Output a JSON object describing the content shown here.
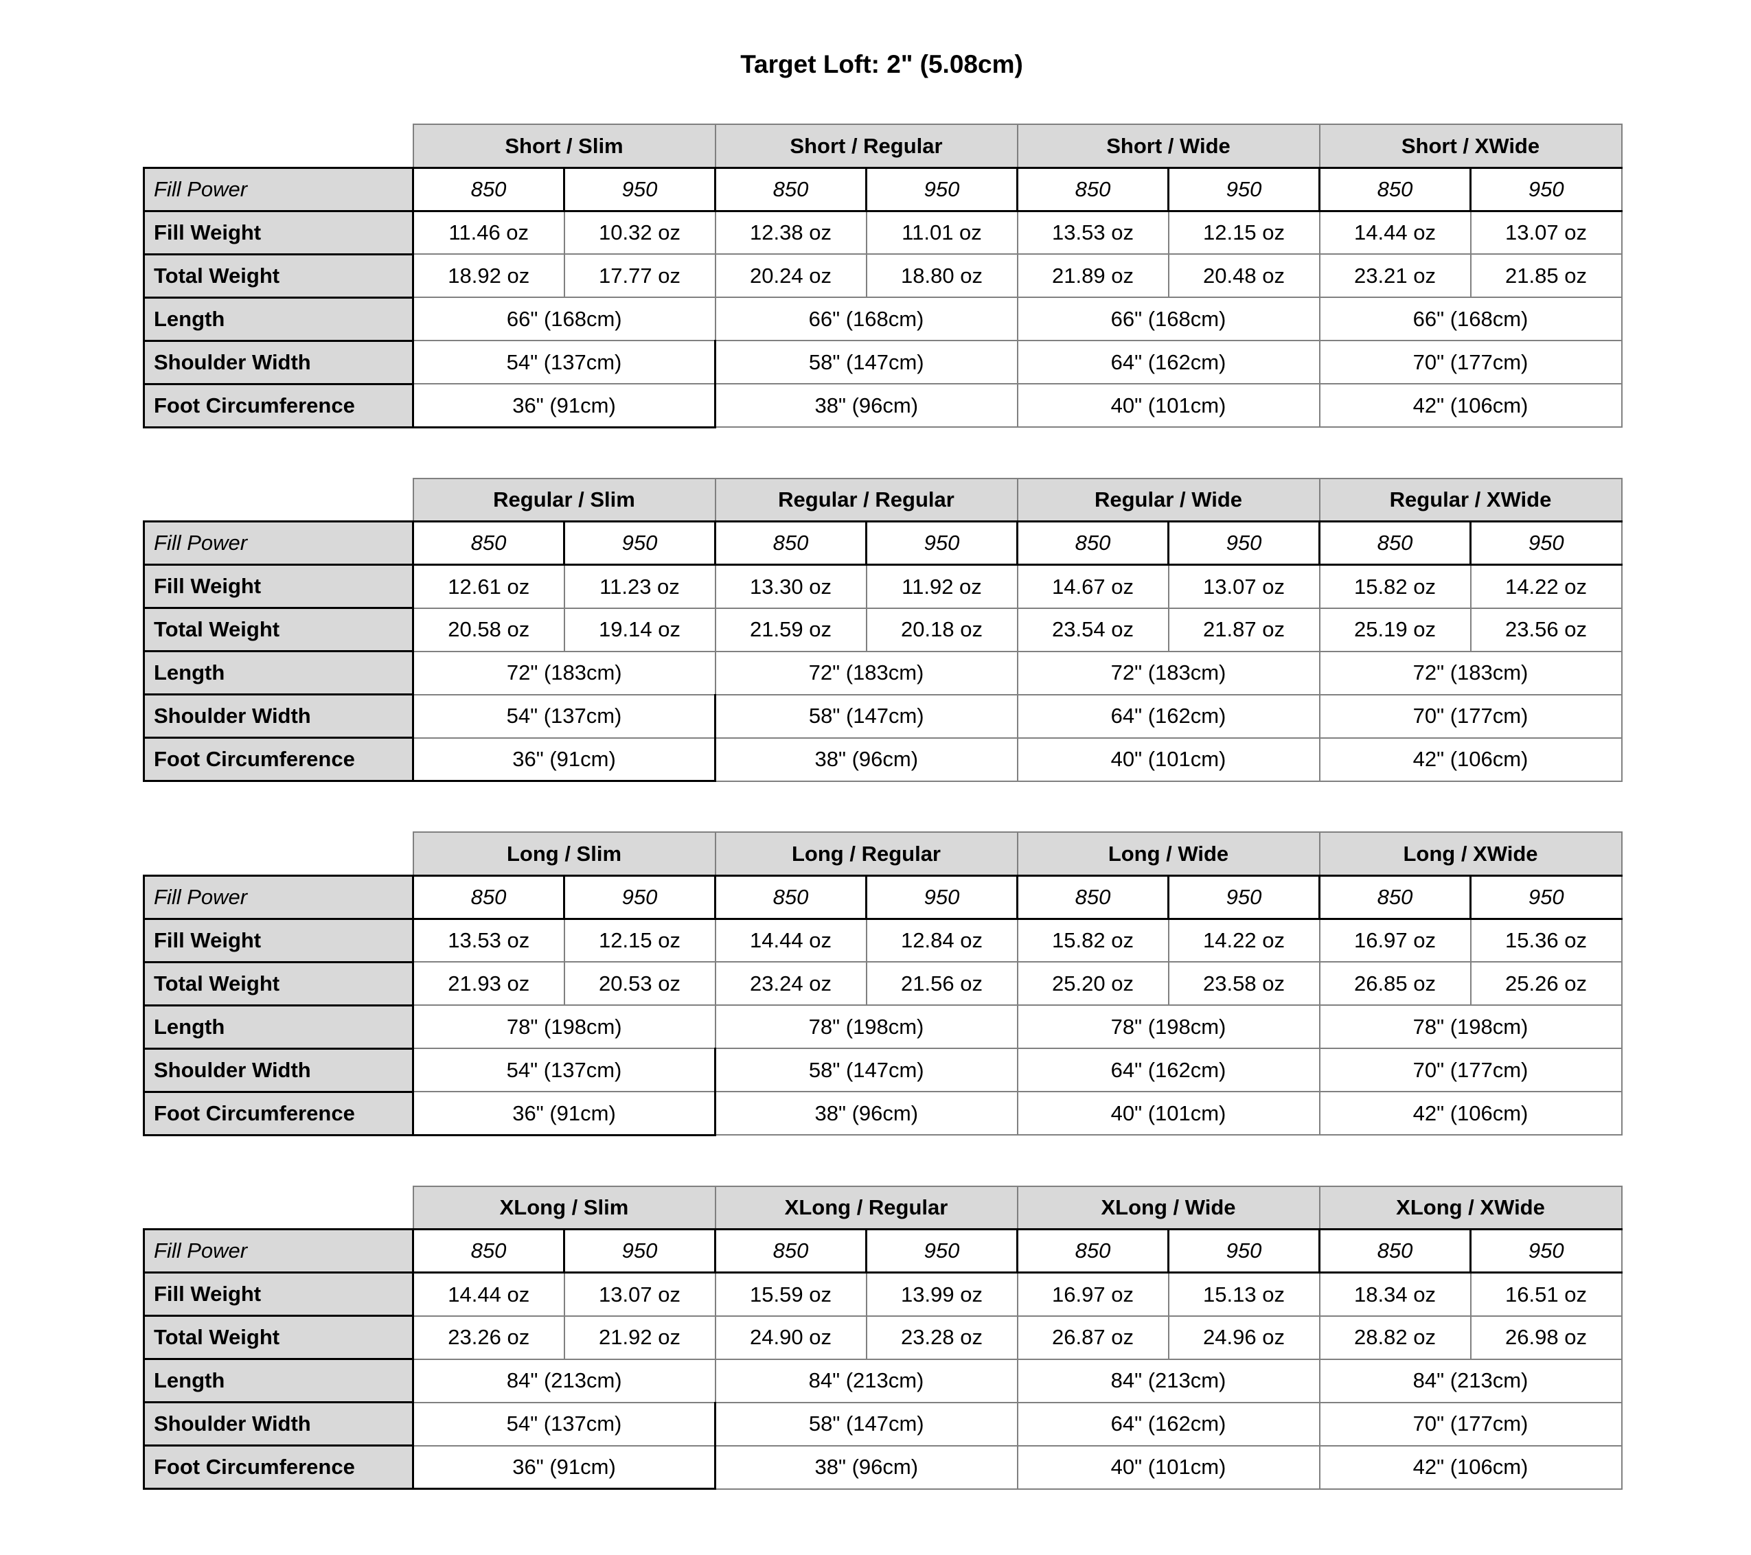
{
  "title": "Target Loft: 2\" (5.08cm)",
  "row_labels": {
    "fill_power": "Fill Power",
    "fill_weight": "Fill Weight",
    "total_weight": "Total Weight",
    "length": "Length",
    "shoulder_width": "Shoulder Width",
    "foot_circumference": "Foot Circumference"
  },
  "fill_power_values": [
    "850",
    "950"
  ],
  "tables": [
    {
      "name": "short",
      "groups": [
        {
          "header": "Short / Slim",
          "fill_weight": [
            "11.46 oz",
            "10.32 oz"
          ],
          "total_weight": [
            "18.92 oz",
            "17.77 oz"
          ],
          "length": "66\" (168cm)",
          "shoulder_width": "54\" (137cm)",
          "foot_circumference": "36\" (91cm)"
        },
        {
          "header": "Short / Regular",
          "fill_weight": [
            "12.38 oz",
            "11.01 oz"
          ],
          "total_weight": [
            "20.24 oz",
            "18.80 oz"
          ],
          "length": "66\" (168cm)",
          "shoulder_width": "58\" (147cm)",
          "foot_circumference": "38\" (96cm)"
        },
        {
          "header": "Short / Wide",
          "fill_weight": [
            "13.53 oz",
            "12.15 oz"
          ],
          "total_weight": [
            "21.89 oz",
            "20.48 oz"
          ],
          "length": "66\" (168cm)",
          "shoulder_width": "64\" (162cm)",
          "foot_circumference": "40\" (101cm)"
        },
        {
          "header": "Short / XWide",
          "fill_weight": [
            "14.44 oz",
            "13.07 oz"
          ],
          "total_weight": [
            "23.21 oz",
            "21.85 oz"
          ],
          "length": "66\" (168cm)",
          "shoulder_width": "70\" (177cm)",
          "foot_circumference": "42\" (106cm)"
        }
      ]
    },
    {
      "name": "regular",
      "groups": [
        {
          "header": "Regular / Slim",
          "fill_weight": [
            "12.61 oz",
            "11.23 oz"
          ],
          "total_weight": [
            "20.58 oz",
            "19.14 oz"
          ],
          "length": "72\" (183cm)",
          "shoulder_width": "54\" (137cm)",
          "foot_circumference": "36\" (91cm)"
        },
        {
          "header": "Regular / Regular",
          "fill_weight": [
            "13.30 oz",
            "11.92 oz"
          ],
          "total_weight": [
            "21.59 oz",
            "20.18 oz"
          ],
          "length": "72\" (183cm)",
          "shoulder_width": "58\" (147cm)",
          "foot_circumference": "38\" (96cm)"
        },
        {
          "header": "Regular / Wide",
          "fill_weight": [
            "14.67 oz",
            "13.07 oz"
          ],
          "total_weight": [
            "23.54 oz",
            "21.87 oz"
          ],
          "length": "72\" (183cm)",
          "shoulder_width": "64\" (162cm)",
          "foot_circumference": "40\" (101cm)"
        },
        {
          "header": "Regular / XWide",
          "fill_weight": [
            "15.82 oz",
            "14.22 oz"
          ],
          "total_weight": [
            "25.19 oz",
            "23.56 oz"
          ],
          "length": "72\" (183cm)",
          "shoulder_width": "70\" (177cm)",
          "foot_circumference": "42\" (106cm)"
        }
      ]
    },
    {
      "name": "long",
      "groups": [
        {
          "header": "Long / Slim",
          "fill_weight": [
            "13.53 oz",
            "12.15 oz"
          ],
          "total_weight": [
            "21.93 oz",
            "20.53 oz"
          ],
          "length": "78\" (198cm)",
          "shoulder_width": "54\" (137cm)",
          "foot_circumference": "36\" (91cm)"
        },
        {
          "header": "Long / Regular",
          "fill_weight": [
            "14.44 oz",
            "12.84 oz"
          ],
          "total_weight": [
            "23.24 oz",
            "21.56 oz"
          ],
          "length": "78\" (198cm)",
          "shoulder_width": "58\" (147cm)",
          "foot_circumference": "38\" (96cm)"
        },
        {
          "header": "Long / Wide",
          "fill_weight": [
            "15.82 oz",
            "14.22 oz"
          ],
          "total_weight": [
            "25.20 oz",
            "23.58 oz"
          ],
          "length": "78\" (198cm)",
          "shoulder_width": "64\" (162cm)",
          "foot_circumference": "40\" (101cm)"
        },
        {
          "header": "Long / XWide",
          "fill_weight": [
            "16.97 oz",
            "15.36 oz"
          ],
          "total_weight": [
            "26.85 oz",
            "25.26 oz"
          ],
          "length": "78\" (198cm)",
          "shoulder_width": "70\" (177cm)",
          "foot_circumference": "42\" (106cm)"
        }
      ]
    },
    {
      "name": "xlong",
      "groups": [
        {
          "header": "XLong / Slim",
          "fill_weight": [
            "14.44 oz",
            "13.07 oz"
          ],
          "total_weight": [
            "23.26 oz",
            "21.92 oz"
          ],
          "length": "84\" (213cm)",
          "shoulder_width": "54\" (137cm)",
          "foot_circumference": "36\" (91cm)"
        },
        {
          "header": "XLong / Regular",
          "fill_weight": [
            "15.59 oz",
            "13.99 oz"
          ],
          "total_weight": [
            "24.90 oz",
            "23.28 oz"
          ],
          "length": "84\" (213cm)",
          "shoulder_width": "58\" (147cm)",
          "foot_circumference": "38\" (96cm)"
        },
        {
          "header": "XLong / Wide",
          "fill_weight": [
            "16.97 oz",
            "15.13 oz"
          ],
          "total_weight": [
            "26.87 oz",
            "24.96 oz"
          ],
          "length": "84\" (213cm)",
          "shoulder_width": "64\" (162cm)",
          "foot_circumference": "40\" (101cm)"
        },
        {
          "header": "XLong / XWide",
          "fill_weight": [
            "18.34 oz",
            "16.51 oz"
          ],
          "total_weight": [
            "28.82 oz",
            "26.98 oz"
          ],
          "length": "84\" (213cm)",
          "shoulder_width": "70\" (177cm)",
          "foot_circumference": "42\" (106cm)"
        }
      ]
    }
  ]
}
